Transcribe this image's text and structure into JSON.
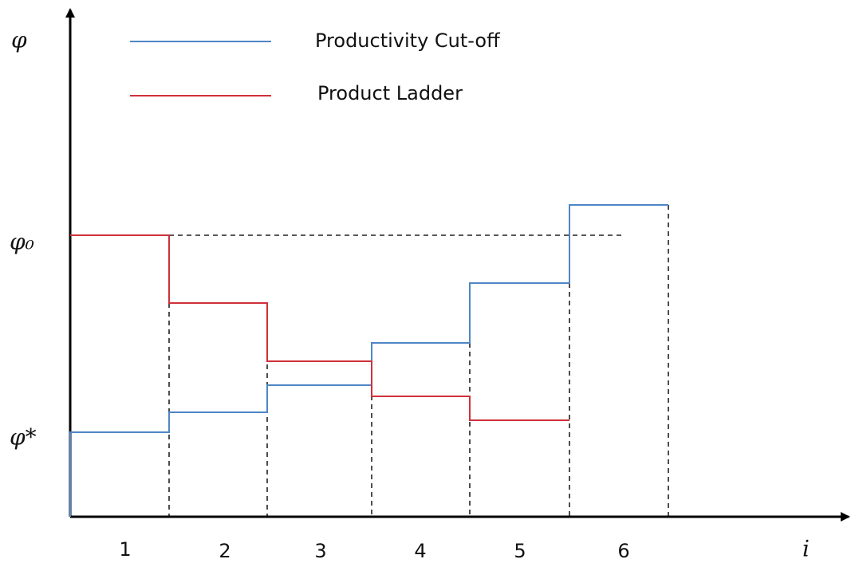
{
  "axis": {
    "y_label": "φ",
    "x_label": "i",
    "y_marks": [
      "φ₀",
      "φ*"
    ]
  },
  "legend": [
    {
      "label": "Productivity Cut-off"
    },
    {
      "label": "Product Ladder"
    }
  ],
  "categories": [
    "1",
    "2",
    "3",
    "4",
    "5",
    "6"
  ]
}
